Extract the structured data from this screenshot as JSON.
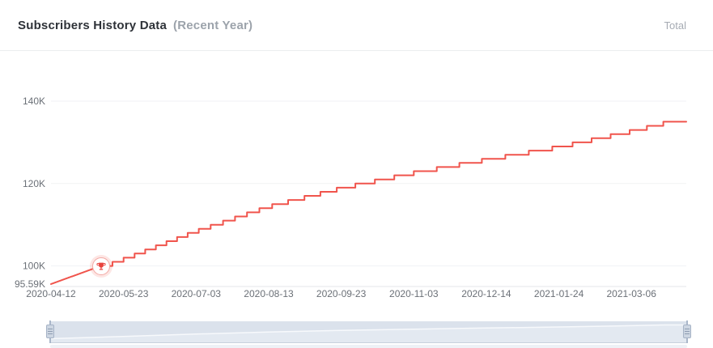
{
  "header": {
    "title": "Subscribers History Data",
    "subtitle": "(Recent Year)",
    "right_label": "Total"
  },
  "colors": {
    "line": "#f0544c",
    "milestone_red": "#e8433d",
    "milestone_ring": "#f3a9a4",
    "grid": "#f1f2f4",
    "axis_line": "#e3e5e9",
    "axis_text": "#6b7077",
    "title_text": "#2e3238",
    "muted_text": "#9ca3ab",
    "slider_track": "#e3e9f1",
    "slider_shadow": "#dbe2ec",
    "slider_line": "#f7f9fc"
  },
  "chart_data": {
    "type": "line",
    "style": "step",
    "title": "Subscribers History Data (Recent Year)",
    "series_name": "Total subscribers",
    "x_span_days": 359,
    "x_ticks": [
      {
        "label": "2020-04-12",
        "day": 0
      },
      {
        "label": "2020-05-23",
        "day": 41
      },
      {
        "label": "2020-07-03",
        "day": 82
      },
      {
        "label": "2020-08-13",
        "day": 123
      },
      {
        "label": "2020-09-23",
        "day": 164
      },
      {
        "label": "2020-11-03",
        "day": 205
      },
      {
        "label": "2020-12-14",
        "day": 246
      },
      {
        "label": "2021-01-24",
        "day": 287
      },
      {
        "label": "2021-03-06",
        "day": 328
      }
    ],
    "y_ticks": [
      {
        "label": "140K",
        "value": 140000
      },
      {
        "label": "120K",
        "value": 120000
      },
      {
        "label": "100K",
        "value": 100000
      },
      {
        "label": "95.59K",
        "value": 95590
      }
    ],
    "grid_values": [
      140000,
      120000,
      100000
    ],
    "y_axis_min": 95000,
    "ylim": [
      95000,
      145000
    ],
    "start": {
      "date": "2020-04-12",
      "value": 95590
    },
    "end": {
      "date": "2021-04-06",
      "value": 135100
    },
    "anchors": [
      [
        0,
        95590
      ],
      [
        41,
        102000
      ],
      [
        82,
        108800
      ],
      [
        123,
        114800
      ],
      [
        164,
        119300
      ],
      [
        205,
        123000
      ],
      [
        246,
        126200
      ],
      [
        287,
        129300
      ],
      [
        328,
        133100
      ],
      [
        346,
        135000
      ],
      [
        359,
        135100
      ]
    ],
    "step_quantum": 1000,
    "milestone": {
      "value": 100000,
      "label": "100K",
      "date": "2020-05-11",
      "icon": "trophy-icon"
    },
    "grid_on": true,
    "legend": "none"
  },
  "slider": {
    "type": "horizontal-range-slider",
    "selected_range": "full"
  }
}
